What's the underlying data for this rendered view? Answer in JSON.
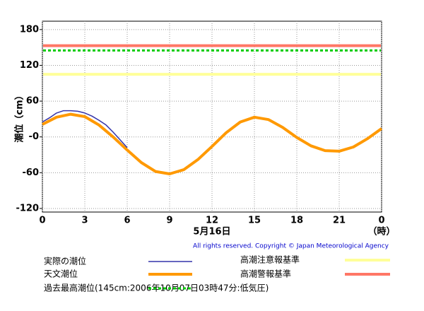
{
  "chart_data": {
    "type": "line",
    "y_label": "潮位（cm）",
    "x_label": "5月16日",
    "x_unit": "（時）",
    "copyright": "All rights reserved. Copyright © Japan Meteorological Agency",
    "xlim": [
      0,
      24
    ],
    "xticks": [
      0,
      3,
      6,
      9,
      12,
      15,
      18,
      21,
      {
        "value": 24,
        "label": "0"
      }
    ],
    "ylim": [
      -126,
      194
    ],
    "yticks": [
      {
        "value": -120,
        "label": "-120"
      },
      -60,
      {
        "value": 0,
        "label": "-0"
      },
      60,
      120,
      180
    ],
    "grid": true,
    "series": [
      {
        "name": "実際の潮位",
        "color": "#3333aa",
        "x": [
          0,
          0.5,
          1,
          1.5,
          2,
          2.5,
          3,
          3.5,
          4,
          4.5,
          5,
          5.5,
          6
        ],
        "values": [
          25,
          32,
          40,
          44,
          44,
          43,
          40,
          35,
          28,
          20,
          8,
          -5,
          -18
        ]
      },
      {
        "name": "天文潮位",
        "color": "#ff9900",
        "x": [
          0,
          1,
          2,
          3,
          4,
          5,
          6,
          7,
          8,
          9,
          10,
          11,
          12,
          13,
          14,
          15,
          16,
          17,
          18,
          19,
          20,
          21,
          22,
          23,
          24
        ],
        "values": [
          21,
          33,
          38,
          34,
          20,
          0,
          -22,
          -43,
          -58,
          -62,
          -55,
          -38,
          -16,
          7,
          25,
          33,
          29,
          16,
          -1,
          -15,
          -23,
          -24,
          -17,
          -3,
          14
        ]
      }
    ],
    "reference_lines": [
      {
        "name": "高潮注意報基準",
        "color": "#ffff99",
        "value": 105,
        "dashed": false
      },
      {
        "name": "高潮警報基準",
        "color": "#ff7766",
        "value": 153,
        "dashed": false
      },
      {
        "name": "過去最高潮位(145cm:2006年10月07日03時47分:低気圧)",
        "color": "#00cc00",
        "value": 145,
        "dashed": true
      }
    ]
  }
}
